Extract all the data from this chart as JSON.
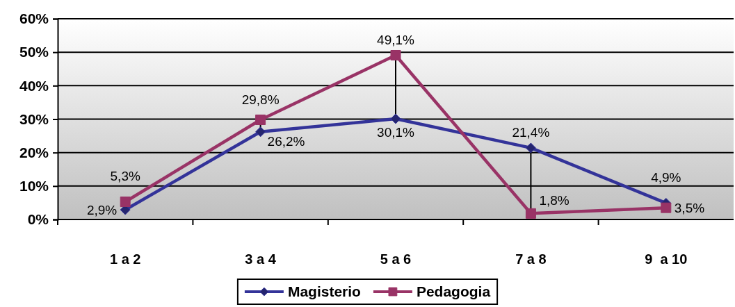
{
  "chart_data": {
    "type": "line",
    "categories": [
      "1 a 2",
      "3 a 4",
      "5 a 6",
      "7 a 8",
      "9  a 10"
    ],
    "series": [
      {
        "name": "Magisterio",
        "color": "#333399",
        "marker": "diamond",
        "values": [
          2.9,
          26.2,
          30.1,
          21.4,
          4.9
        ],
        "value_labels": [
          "2,9%",
          "26,2%",
          "30,1%",
          "21,4%",
          "4,9%"
        ]
      },
      {
        "name": "Pedagogia",
        "color": "#993366",
        "marker": "square",
        "values": [
          5.3,
          29.8,
          49.1,
          1.8,
          3.5
        ],
        "value_labels": [
          "5,3%",
          "29,8%",
          "49,1%",
          "1,8%",
          "3,5%"
        ]
      }
    ],
    "ylim": [
      0,
      60
    ],
    "yticks": [
      {
        "value": 0,
        "label": "0%"
      },
      {
        "value": 10,
        "label": "10%"
      },
      {
        "value": 20,
        "label": "20%"
      },
      {
        "value": 30,
        "label": "30%"
      },
      {
        "value": 40,
        "label": "40%"
      },
      {
        "value": 50,
        "label": "50%"
      },
      {
        "value": 60,
        "label": "60%"
      }
    ],
    "grid": "y",
    "legend": "bottom"
  }
}
